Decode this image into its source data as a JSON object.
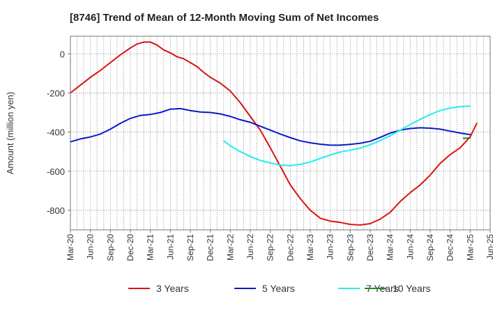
{
  "chart_data": {
    "type": "line",
    "title": "[8746]  Trend of Mean of 12-Month Moving Sum of Net Incomes",
    "xlabel": "",
    "ylabel": "Amount (million yen)",
    "x_ticks": [
      "Mar-20",
      "Jun-20",
      "Sep-20",
      "Dec-20",
      "Mar-21",
      "Jun-21",
      "Sep-21",
      "Dec-21",
      "Mar-22",
      "Jun-22",
      "Sep-22",
      "Dec-22",
      "Mar-23",
      "Jun-23",
      "Sep-23",
      "Dec-23",
      "Mar-24",
      "Jun-24",
      "Sep-24",
      "Dec-24",
      "Mar-25",
      "Jun-25"
    ],
    "y_ticks": [
      0,
      -200,
      -400,
      -600,
      -800
    ],
    "ylim": [
      -900,
      90
    ],
    "grid": true,
    "legend_position": "bottom",
    "x_unit": "quarter index (0 = Mar-20)",
    "series": [
      {
        "name": "3 Years",
        "color": "#dd1111",
        "points": [
          [
            0,
            -200
          ],
          [
            0.5,
            -160
          ],
          [
            1,
            -120
          ],
          [
            1.5,
            -85
          ],
          [
            2,
            -45
          ],
          [
            2.5,
            -5
          ],
          [
            3,
            30
          ],
          [
            3.33,
            50
          ],
          [
            3.67,
            60
          ],
          [
            4,
            60
          ],
          [
            4.33,
            45
          ],
          [
            4.67,
            20
          ],
          [
            5,
            5
          ],
          [
            5.33,
            -15
          ],
          [
            5.67,
            -25
          ],
          [
            6,
            -45
          ],
          [
            6.33,
            -65
          ],
          [
            6.67,
            -95
          ],
          [
            7,
            -120
          ],
          [
            7.5,
            -150
          ],
          [
            8,
            -190
          ],
          [
            8.5,
            -250
          ],
          [
            9,
            -320
          ],
          [
            9.5,
            -390
          ],
          [
            10,
            -480
          ],
          [
            10.5,
            -575
          ],
          [
            11,
            -670
          ],
          [
            11.5,
            -740
          ],
          [
            12,
            -800
          ],
          [
            12.5,
            -840
          ],
          [
            13,
            -855
          ],
          [
            13.5,
            -862
          ],
          [
            14,
            -872
          ],
          [
            14.5,
            -875
          ],
          [
            15,
            -868
          ],
          [
            15.5,
            -845
          ],
          [
            16,
            -810
          ],
          [
            16.5,
            -755
          ],
          [
            17,
            -710
          ],
          [
            17.5,
            -670
          ],
          [
            18,
            -620
          ],
          [
            18.5,
            -560
          ],
          [
            19,
            -515
          ],
          [
            19.5,
            -480
          ],
          [
            20,
            -425
          ],
          [
            20.33,
            -355
          ]
        ]
      },
      {
        "name": "5 Years",
        "color": "#0a18c8",
        "points": [
          [
            0,
            -450
          ],
          [
            0.5,
            -435
          ],
          [
            1,
            -425
          ],
          [
            1.5,
            -410
          ],
          [
            2,
            -385
          ],
          [
            2.5,
            -355
          ],
          [
            3,
            -330
          ],
          [
            3.5,
            -315
          ],
          [
            4,
            -310
          ],
          [
            4.5,
            -300
          ],
          [
            5,
            -283
          ],
          [
            5.5,
            -280
          ],
          [
            6,
            -290
          ],
          [
            6.5,
            -297
          ],
          [
            7,
            -300
          ],
          [
            7.5,
            -307
          ],
          [
            8,
            -320
          ],
          [
            8.5,
            -337
          ],
          [
            9,
            -350
          ],
          [
            9.5,
            -370
          ],
          [
            10,
            -390
          ],
          [
            10.5,
            -410
          ],
          [
            11,
            -428
          ],
          [
            11.5,
            -445
          ],
          [
            12,
            -455
          ],
          [
            12.5,
            -462
          ],
          [
            13,
            -467
          ],
          [
            13.5,
            -467
          ],
          [
            14,
            -463
          ],
          [
            14.5,
            -457
          ],
          [
            15,
            -447
          ],
          [
            15.5,
            -427
          ],
          [
            16,
            -405
          ],
          [
            16.5,
            -390
          ],
          [
            17,
            -382
          ],
          [
            17.5,
            -378
          ],
          [
            18,
            -380
          ],
          [
            18.5,
            -385
          ],
          [
            19,
            -395
          ],
          [
            19.5,
            -405
          ],
          [
            20,
            -413
          ]
        ]
      },
      {
        "name": "7 Years",
        "color": "#22eeee",
        "points": [
          [
            7.67,
            -445
          ],
          [
            8,
            -470
          ],
          [
            8.5,
            -500
          ],
          [
            9,
            -525
          ],
          [
            9.5,
            -545
          ],
          [
            10,
            -558
          ],
          [
            10.5,
            -568
          ],
          [
            11,
            -572
          ],
          [
            11.5,
            -565
          ],
          [
            12,
            -553
          ],
          [
            12.5,
            -535
          ],
          [
            13,
            -517
          ],
          [
            13.5,
            -502
          ],
          [
            14,
            -493
          ],
          [
            14.5,
            -482
          ],
          [
            15,
            -465
          ],
          [
            15.5,
            -443
          ],
          [
            16,
            -418
          ],
          [
            16.5,
            -390
          ],
          [
            17,
            -362
          ],
          [
            17.5,
            -335
          ],
          [
            18,
            -310
          ],
          [
            18.5,
            -290
          ],
          [
            19,
            -277
          ],
          [
            19.5,
            -270
          ],
          [
            20,
            -267
          ]
        ]
      },
      {
        "name": "10 Years",
        "color": "#228822",
        "points": [
          [
            19.67,
            -432
          ],
          [
            20,
            -430
          ]
        ]
      }
    ]
  }
}
